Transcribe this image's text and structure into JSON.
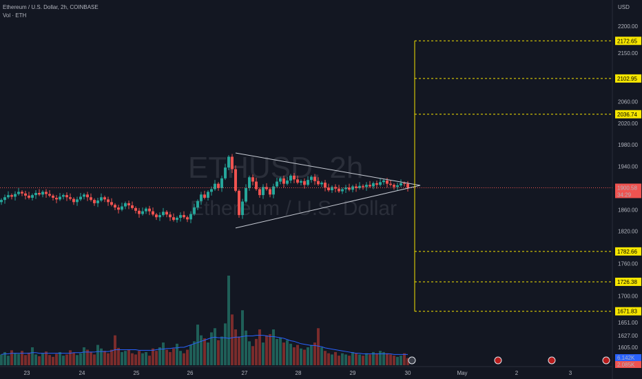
{
  "header": {
    "symbol_line": "Ethereum / U.S. Dollar, 2h, COINBASE",
    "volume_line": "Vol · ETH"
  },
  "watermark": {
    "ticker": "ETHUSD, 2h",
    "name": "Ethereum / U.S. Dollar"
  },
  "price_axis": {
    "currency": "USD",
    "ticks": [
      "2200.00",
      "2150.00",
      "2100.00",
      "2060.00",
      "2020.00",
      "1980.00",
      "1940.00",
      "1860.00",
      "1820.00",
      "1760.00",
      "1700.00",
      "1651.00",
      "1627.00",
      "1605.00"
    ]
  },
  "last_price": {
    "value": "1900.58",
    "countdown": "34:29",
    "color": "#ef5350"
  },
  "volume_labels": [
    {
      "value": "6.142K",
      "color": "#2962ff"
    },
    {
      "value": "2.085K",
      "color": "#ef5350"
    }
  ],
  "colors": {
    "up": "#26a69a",
    "down": "#ef5350",
    "level": "#f7e600",
    "pattern": "#c9cdd6"
  },
  "chart_data": {
    "type": "candlestick",
    "title": "Ethereum / U.S. Dollar, 2h, COINBASE",
    "x_labels": [
      "23",
      "24",
      "25",
      "26",
      "27",
      "28",
      "29",
      "30",
      "May",
      "2",
      "3"
    ],
    "y_range": [
      1600,
      2210
    ],
    "levels": [
      2172.65,
      2102.95,
      2036.74,
      1782.66,
      1726.38,
      1671.83
    ],
    "level_labels": [
      "2172.65",
      "2102.95",
      "2036.74",
      "1782.66",
      "1726.38",
      "1671.83"
    ],
    "triangle": {
      "upper_start": 1965,
      "lower_start": 1826,
      "apex": 1905
    },
    "closes": [
      1878,
      1883,
      1887,
      1884,
      1889,
      1893,
      1890,
      1886,
      1882,
      1887,
      1891,
      1888,
      1893,
      1889,
      1886,
      1882,
      1879,
      1884,
      1887,
      1883,
      1880,
      1874,
      1879,
      1884,
      1888,
      1883,
      1878,
      1872,
      1877,
      1883,
      1879,
      1874,
      1869,
      1864,
      1860,
      1866,
      1872,
      1868,
      1863,
      1858,
      1852,
      1857,
      1862,
      1857,
      1851,
      1846,
      1850,
      1856,
      1851,
      1846,
      1841,
      1845,
      1850,
      1846,
      1842,
      1852,
      1864,
      1876,
      1888,
      1882,
      1893,
      1898,
      1908,
      1900,
      1918,
      1938,
      1958,
      1935,
      1895,
      1850,
      1875,
      1900,
      1920,
      1912,
      1898,
      1887,
      1902,
      1898,
      1888,
      1903,
      1912,
      1918,
      1908,
      1914,
      1923,
      1916,
      1910,
      1913,
      1906,
      1915,
      1921,
      1913,
      1907,
      1910,
      1901,
      1896,
      1902,
      1899,
      1894,
      1898,
      1901,
      1897,
      1903,
      1900,
      1904,
      1902,
      1906,
      1903,
      1909,
      1906,
      1911,
      1914,
      1908,
      1906,
      1902,
      1905,
      1909,
      1908,
      1900.58
    ],
    "volumes": [
      18,
      22,
      16,
      25,
      20,
      19,
      24,
      17,
      21,
      30,
      18,
      15,
      20,
      23,
      17,
      14,
      19,
      22,
      16,
      18,
      25,
      21,
      17,
      20,
      30,
      26,
      22,
      18,
      34,
      28,
      24,
      20,
      26,
      50,
      29,
      22,
      24,
      26,
      20,
      18,
      24,
      20,
      22,
      16,
      28,
      24,
      30,
      38,
      26,
      22,
      28,
      36,
      24,
      20,
      26,
      34,
      40,
      68,
      50,
      45,
      38,
      55,
      62,
      42,
      48,
      70,
      150,
      85,
      60,
      48,
      92,
      58,
      40,
      32,
      44,
      60,
      38,
      50,
      52,
      60,
      44,
      46,
      38,
      42,
      36,
      30,
      34,
      28,
      26,
      30,
      34,
      38,
      62,
      30,
      24,
      20,
      18,
      22,
      16,
      20,
      18,
      16,
      22,
      20,
      18,
      16,
      20,
      18,
      22,
      20,
      24,
      22,
      20,
      18,
      16,
      14,
      16,
      20,
      12
    ],
    "volume_ma": [
      18,
      19,
      19,
      20,
      20,
      20,
      20,
      20,
      20,
      21,
      21,
      20,
      20,
      20,
      20,
      20,
      20,
      20,
      20,
      20,
      20,
      21,
      21,
      21,
      22,
      22,
      22,
      22,
      23,
      23,
      23,
      23,
      24,
      26,
      26,
      26,
      26,
      26,
      26,
      26,
      25,
      25,
      25,
      25,
      25,
      26,
      27,
      27,
      28,
      28,
      29,
      29,
      30,
      30,
      32,
      34,
      36,
      38,
      40,
      42,
      44,
      46,
      47,
      46,
      46,
      46,
      45,
      46,
      47,
      47,
      48,
      49,
      49,
      49,
      50,
      50,
      50,
      49,
      48,
      48,
      47,
      46,
      45,
      43,
      41,
      40,
      38,
      36,
      35,
      34,
      33,
      33,
      32,
      31,
      29,
      28,
      27,
      26,
      25,
      24,
      23,
      22,
      21,
      20,
      20,
      19,
      19,
      19,
      19,
      19,
      19,
      19,
      19,
      19,
      18,
      18,
      18,
      18,
      18
    ]
  }
}
